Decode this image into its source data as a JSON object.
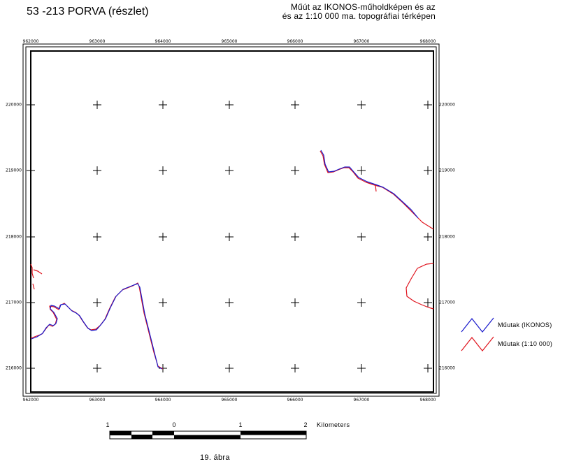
{
  "title": "53 -213 PORVA (részlet)",
  "subtitle": {
    "line1": "Műút az IKONOS-műholdképen és az",
    "line2": "és az 1:10 000 ma. topográfiai térképen"
  },
  "x_ticks": [
    "962000",
    "963000",
    "964000",
    "965000",
    "966000",
    "967000",
    "968000"
  ],
  "y_ticks": [
    "220000",
    "219000",
    "218000",
    "217000",
    "216000"
  ],
  "legend": [
    {
      "label": "Műutak (IKONOS)",
      "color": "#1a1acc"
    },
    {
      "label": "Műutak (1:10 000)",
      "color": "#e0141e"
    }
  ],
  "scale_bar": {
    "labels": [
      "1",
      "0",
      "1",
      "2"
    ],
    "unit": "Kilometers"
  },
  "caption": "19. ábra",
  "colors": {
    "ikonos_road": "#1a1acc",
    "topo_road": "#e0141e",
    "frame": "#000000"
  }
}
